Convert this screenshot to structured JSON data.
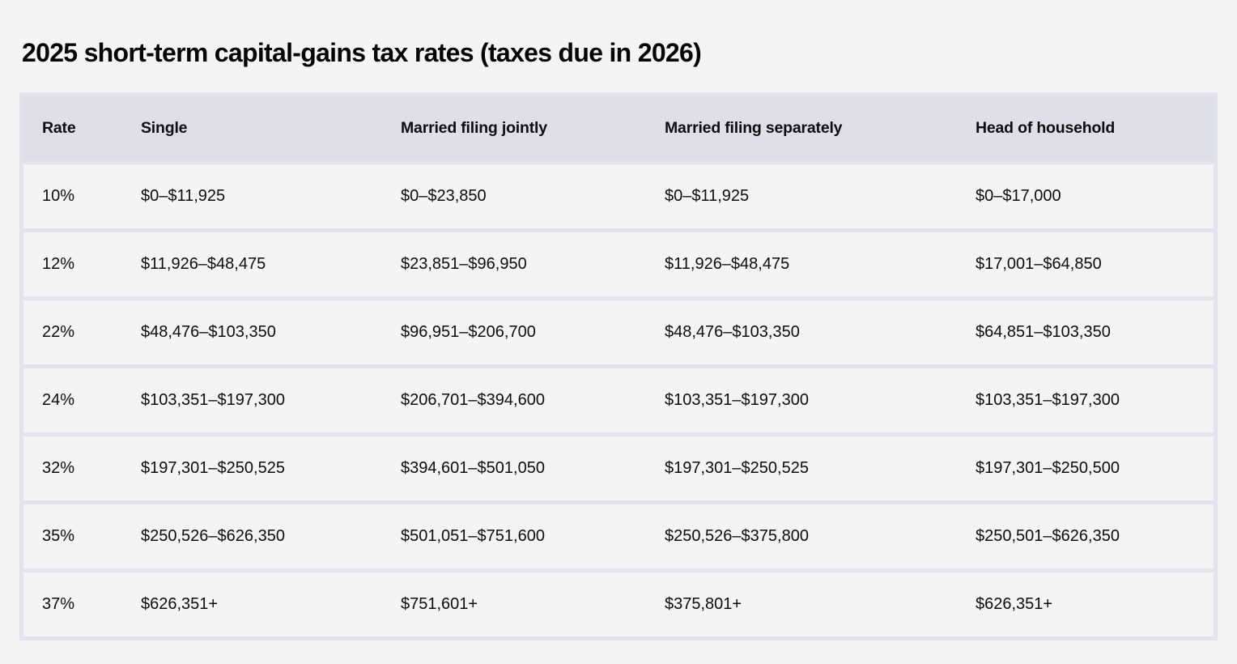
{
  "page": {
    "title": "2025 short-term capital-gains tax rates (taxes due in 2026)",
    "background_color": "#f4f4f4"
  },
  "table": {
    "headers": [
      "Rate",
      "Single",
      "Married filing jointly",
      "Married filing separately",
      "Head of household"
    ],
    "rows": [
      {
        "cells": [
          "10%",
          "$0–$11,925",
          "$0–$23,850",
          "$0–$11,925",
          "$0–$17,000"
        ]
      },
      {
        "cells": [
          "12%",
          "$11,926–$48,475",
          "$23,851–$96,950",
          "$11,926–$48,475",
          "$17,001–$64,850"
        ]
      },
      {
        "cells": [
          "22%",
          "$48,476–$103,350",
          "$96,951–$206,700",
          "$48,476–$103,350",
          "$64,851–$103,350"
        ]
      },
      {
        "cells": [
          "24%",
          "$103,351–$197,300",
          "$206,701–$394,600",
          "$103,351–$197,300",
          "$103,351–$197,300"
        ]
      },
      {
        "cells": [
          "32%",
          "$197,301–$250,525",
          "$394,601–$501,050",
          "$197,301–$250,525",
          "$197,301–$250,500"
        ]
      },
      {
        "cells": [
          "35%",
          "$250,526–$626,350",
          "$501,051–$751,600",
          "$250,526–$375,800",
          "$250,501–$626,350"
        ]
      },
      {
        "cells": [
          "37%",
          "$626,351+",
          "$751,601+",
          "$375,801+",
          "$626,351+"
        ]
      }
    ],
    "colors": {
      "header_bg": "#dfdfea",
      "row_bg": "#f4f4f5",
      "border": "#e3e2ee",
      "text": "#0d0d0d"
    }
  }
}
